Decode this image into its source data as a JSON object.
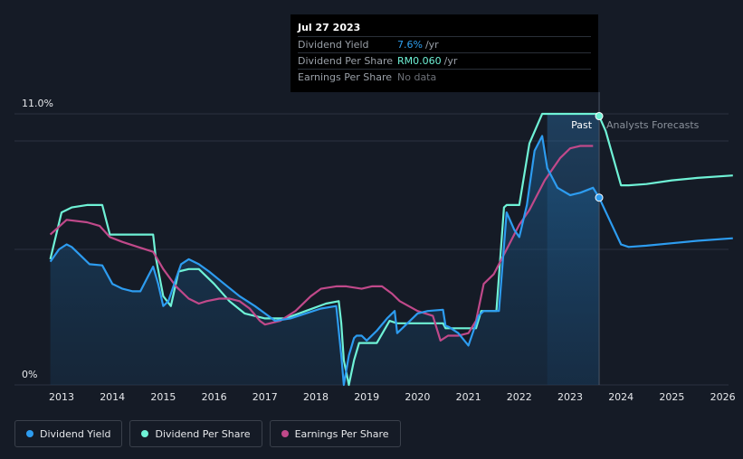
{
  "chart_data": {
    "type": "line",
    "ylim": [
      0,
      11.0
    ],
    "y_top_label": "11.0%",
    "y_bottom_label": "0%",
    "x_ticks": [
      "2013",
      "2014",
      "2015",
      "2016",
      "2017",
      "2018",
      "2019",
      "2020",
      "2021",
      "2022",
      "2023",
      "2024",
      "2025",
      "2026"
    ],
    "past_label": "Past",
    "forecast_label": "Analysts Forecasts",
    "series": [
      {
        "name": "Dividend Yield",
        "color": "#2d9cf0",
        "x": [
          2012.78,
          2012.95,
          2013.1,
          2013.2,
          2013.4,
          2013.55,
          2013.8,
          2014.0,
          2014.2,
          2014.4,
          2014.55,
          2014.7,
          2014.8,
          2014.9,
          2015.0,
          2015.1,
          2015.25,
          2015.35,
          2015.5,
          2015.7,
          2015.9,
          2016.2,
          2016.5,
          2016.8,
          2017.0,
          2017.2,
          2017.5,
          2017.8,
          2018.1,
          2018.4,
          2018.5,
          2018.55,
          2018.65,
          2018.75,
          2018.8,
          2018.9,
          2019.0,
          2019.2,
          2019.4,
          2019.55,
          2019.6,
          2019.8,
          2020.0,
          2020.2,
          2020.5,
          2020.55,
          2020.62,
          2020.8,
          2021.0,
          2021.2,
          2021.3,
          2021.6,
          2021.75,
          2021.9,
          2022.0,
          2022.15,
          2022.3,
          2022.45,
          2022.55,
          2022.75,
          2023.0,
          2023.2,
          2023.45,
          2023.57,
          2024.0,
          2024.15,
          2024.5,
          2025.0,
          2025.5,
          2026.2
        ],
        "y": [
          5.0,
          5.5,
          5.7,
          5.6,
          5.2,
          4.9,
          4.85,
          4.1,
          3.9,
          3.8,
          3.8,
          4.4,
          4.8,
          4.1,
          3.2,
          3.4,
          4.3,
          4.9,
          5.1,
          4.9,
          4.6,
          4.1,
          3.6,
          3.2,
          2.9,
          2.6,
          2.7,
          2.9,
          3.1,
          3.2,
          1.2,
          0.0,
          1.2,
          1.9,
          2.0,
          2.0,
          1.8,
          2.2,
          2.7,
          3.0,
          2.1,
          2.5,
          2.9,
          3.0,
          3.05,
          2.4,
          2.35,
          2.1,
          1.6,
          2.8,
          3.0,
          3.0,
          7.0,
          6.3,
          6.0,
          7.3,
          9.5,
          10.1,
          8.8,
          8.0,
          7.7,
          7.8,
          8.0,
          7.6,
          5.7,
          5.6,
          5.65,
          5.75,
          5.85,
          5.95
        ]
      },
      {
        "name": "Dividend Per Share",
        "color": "#6ff2d6",
        "x": [
          2012.78,
          2013.0,
          2013.2,
          2013.5,
          2013.8,
          2013.95,
          2014.2,
          2014.5,
          2014.8,
          2014.85,
          2015.0,
          2015.15,
          2015.3,
          2015.5,
          2015.7,
          2016.0,
          2016.3,
          2016.6,
          2017.0,
          2017.4,
          2017.8,
          2018.2,
          2018.45,
          2018.5,
          2018.55,
          2018.65,
          2018.75,
          2018.85,
          2019.0,
          2019.2,
          2019.45,
          2019.6,
          2019.62,
          2020.0,
          2020.5,
          2020.55,
          2020.58,
          2021.0,
          2021.1,
          2021.15,
          2021.25,
          2021.5,
          2021.55,
          2021.7,
          2021.75,
          2021.95,
          2022.0,
          2022.2,
          2022.45,
          2022.6,
          2023.0,
          2023.4,
          2023.55,
          2023.7,
          2024.0,
          2024.15,
          2024.5,
          2025.0,
          2025.5,
          2026.2
        ],
        "y": [
          5.1,
          7.0,
          7.2,
          7.3,
          7.3,
          6.1,
          6.1,
          6.1,
          6.1,
          5.2,
          3.6,
          3.2,
          4.6,
          4.7,
          4.7,
          4.1,
          3.4,
          2.9,
          2.7,
          2.7,
          3.0,
          3.3,
          3.4,
          2.5,
          1.0,
          0.0,
          1.0,
          1.7,
          1.7,
          1.7,
          2.6,
          2.5,
          2.5,
          2.5,
          2.5,
          2.3,
          2.3,
          2.3,
          2.3,
          2.3,
          3.0,
          3.0,
          3.0,
          7.2,
          7.3,
          7.3,
          7.3,
          9.8,
          11.0,
          11.0,
          11.0,
          11.0,
          11.0,
          10.3,
          8.1,
          8.1,
          8.15,
          8.3,
          8.4,
          8.5
        ]
      },
      {
        "name": "Earnings Per Share",
        "color": "#c0498a",
        "x": [
          2012.78,
          2013.1,
          2013.5,
          2013.75,
          2013.95,
          2014.2,
          2014.5,
          2014.8,
          2015.0,
          2015.25,
          2015.5,
          2015.7,
          2015.85,
          2016.1,
          2016.3,
          2016.5,
          2016.7,
          2016.9,
          2017.0,
          2017.3,
          2017.6,
          2017.9,
          2018.1,
          2018.4,
          2018.6,
          2018.9,
          2019.1,
          2019.3,
          2019.5,
          2019.65,
          2020.0,
          2020.3,
          2020.45,
          2020.6,
          2020.8,
          2021.0,
          2021.15,
          2021.3,
          2021.5,
          2021.75,
          2022.0,
          2022.2,
          2022.5,
          2022.8,
          2023.0,
          2023.2,
          2023.45
        ],
        "y": [
          6.1,
          6.7,
          6.6,
          6.45,
          6.0,
          5.8,
          5.6,
          5.4,
          4.7,
          4.0,
          3.5,
          3.3,
          3.4,
          3.5,
          3.5,
          3.4,
          3.1,
          2.6,
          2.45,
          2.6,
          3.0,
          3.6,
          3.9,
          4.0,
          4.0,
          3.9,
          4.0,
          4.0,
          3.7,
          3.4,
          3.0,
          2.8,
          1.8,
          2.0,
          2.0,
          2.1,
          2.6,
          4.1,
          4.5,
          5.5,
          6.5,
          7.1,
          8.3,
          9.2,
          9.6,
          9.7,
          9.7
        ]
      }
    ]
  },
  "tooltip": {
    "date": "Jul 27 2023",
    "rows": [
      {
        "label": "Dividend Yield",
        "value": "7.6%",
        "unit": "/yr"
      },
      {
        "label": "Dividend Per Share",
        "value": "RM0.060",
        "unit": "/yr"
      },
      {
        "label": "Earnings Per Share",
        "value": "No data",
        "unit": ""
      }
    ]
  },
  "legend": [
    {
      "label": "Dividend Yield",
      "color": "#2d9cf0"
    },
    {
      "label": "Dividend Per Share",
      "color": "#6ff2d6"
    },
    {
      "label": "Earnings Per Share",
      "color": "#c0498a"
    }
  ],
  "cursor": {
    "x": 2023.57
  }
}
